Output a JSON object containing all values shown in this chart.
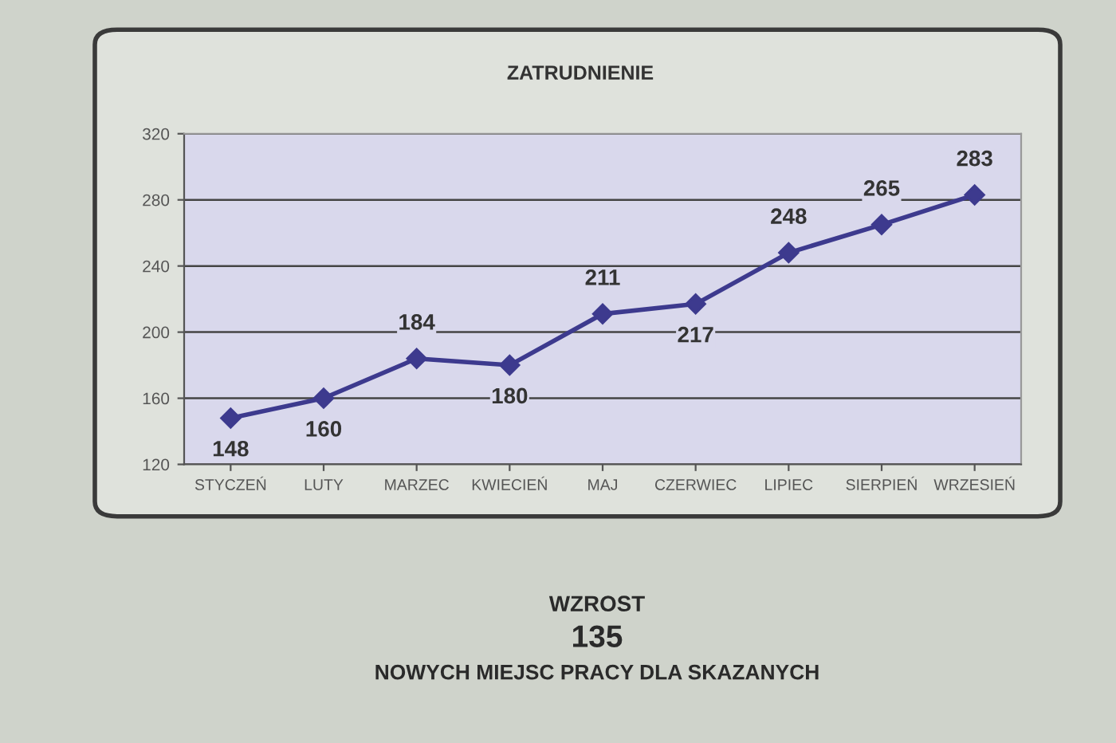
{
  "chart_data": {
    "type": "line",
    "title": "ZATRUDNIENIE",
    "categories": [
      "STYCZEŃ",
      "LUTY",
      "MARZEC",
      "KWIECIEŃ",
      "MAJ",
      "CZERWIEC",
      "LIPIEC",
      "SIERPIEŃ",
      "WRZESIEŃ"
    ],
    "series": [
      {
        "color": "#3d3a8e",
        "values": [
          148,
          160,
          184,
          180,
          211,
          217,
          248,
          265,
          283
        ]
      }
    ],
    "ylim": [
      120,
      320
    ],
    "yticks": [
      120,
      160,
      200,
      240,
      280,
      320
    ],
    "grid": "y",
    "marker": "diamond",
    "line_style": "solid",
    "data_labels": true,
    "annotations": [
      "WZROST",
      "135",
      "NOWYCH MIEJSC PRACY DLA SKAZANYCH"
    ]
  }
}
